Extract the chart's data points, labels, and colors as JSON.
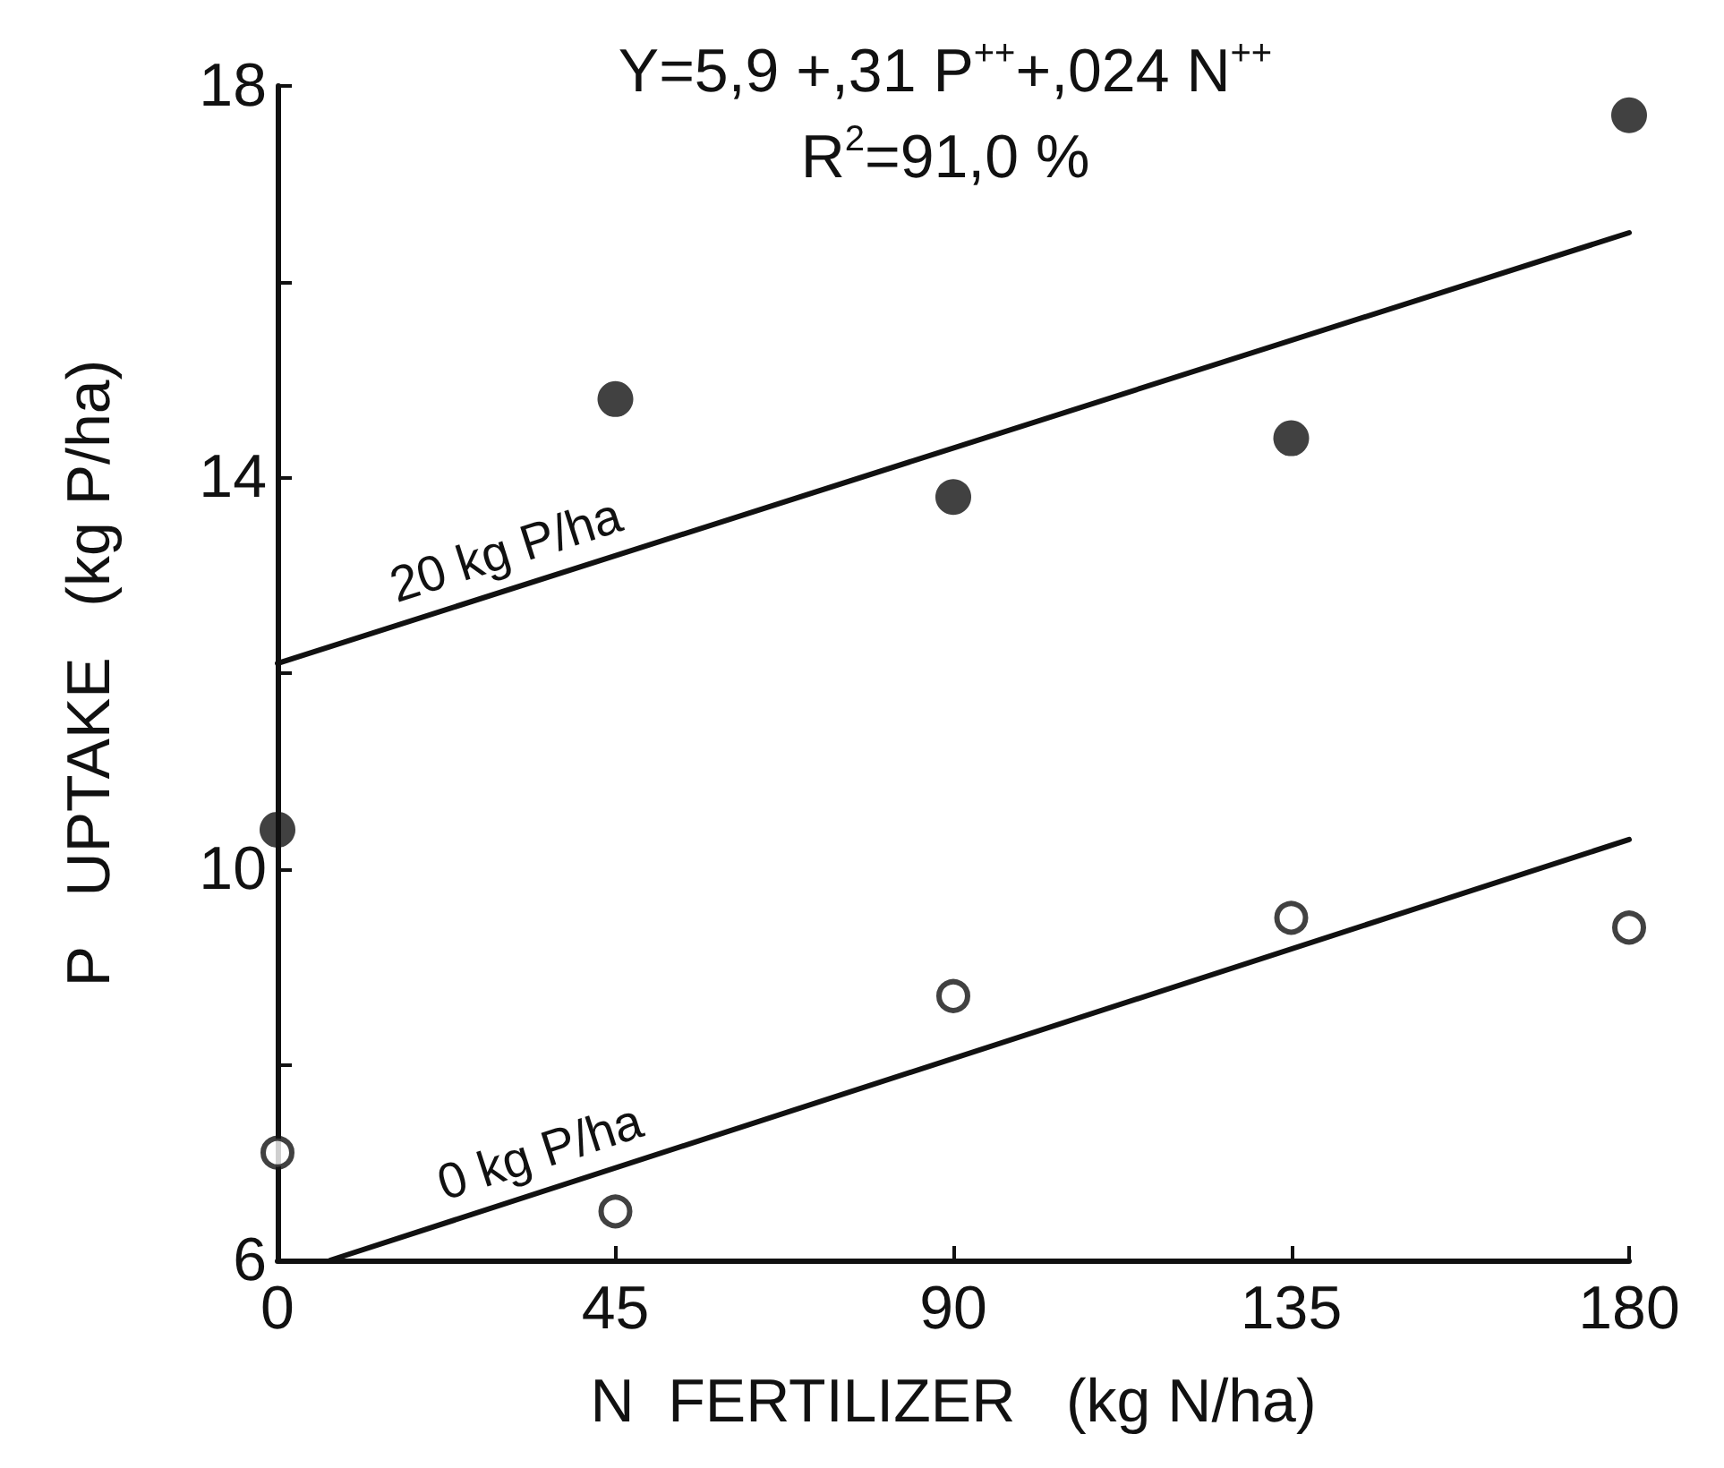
{
  "chart_data": {
    "type": "scatter",
    "xlabel": "N  FERTILIZER   (kg N/ha)",
    "ylabel": "P   UPTAKE   (kg P/ha)",
    "annotations": [
      "Y=5,9 +,31 P$^{++}$+,024 N$^{++}$",
      "R$^{2}$=91,0 %"
    ],
    "xlim": [
      0,
      180
    ],
    "xticks": [
      0,
      45,
      90,
      135,
      180
    ],
    "ylim": [
      6,
      18
    ],
    "yticks": [
      6,
      {
        "value": 8,
        "label": null
      },
      10,
      {
        "value": 12,
        "label": null
      },
      14,
      {
        "value": 16,
        "label": null
      },
      18
    ],
    "grid": false,
    "legend": false,
    "marker": "circle",
    "series": [
      {
        "color": "#111111",
        "x": [
          0,
          45,
          90,
          135,
          180
        ],
        "values": [
          10.4,
          14.8,
          13.8,
          14.4,
          17.7
        ]
      },
      {
        "color": "#111111",
        "x": [
          0,
          45,
          90,
          135,
          180
        ],
        "values": [
          7.1,
          6.5,
          8.7,
          9.5,
          9.4
        ]
      },
      {
        "type": "line",
        "name": "20 kg P/ha",
        "color": "#111111",
        "marker": "none",
        "x": [
          0,
          180
        ],
        "values": [
          12.1,
          16.5
        ]
      },
      {
        "type": "line",
        "name": "0 kg P/ha",
        "color": "#111111",
        "marker": "none",
        "x": [
          7,
          180
        ],
        "values": [
          6.0,
          10.3
        ]
      }
    ]
  }
}
